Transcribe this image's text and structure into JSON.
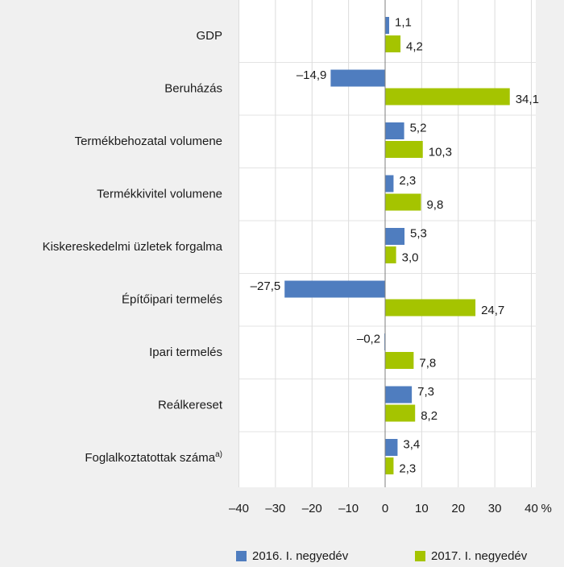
{
  "chart_data": {
    "type": "bar",
    "orientation": "horizontal",
    "categories": [
      "GDP",
      "Beruházás",
      "Termékbehozatal volumene",
      "Termékkivitel volumene",
      "Kiskereskedelmi üzletek forgalma",
      "Építőipari termelés",
      "Ipari termelés",
      "Reálkereset",
      "Foglalkoztatottak száma"
    ],
    "category_superscripts": [
      null,
      null,
      null,
      null,
      null,
      null,
      null,
      null,
      "a)"
    ],
    "series": [
      {
        "name": "2016. I. negyedév",
        "color": "#4f7dbf",
        "values": [
          1.1,
          -14.9,
          5.2,
          2.3,
          5.3,
          -27.5,
          -0.2,
          7.3,
          3.4
        ],
        "value_labels": [
          "1,1",
          "–14,9",
          "5,2",
          "2,3",
          "5,3",
          "–27,5",
          "–0,2",
          "7,3",
          "3,4"
        ]
      },
      {
        "name": "2017. I. negyedév",
        "color": "#a5c400",
        "values": [
          4.2,
          34.1,
          10.3,
          9.8,
          3.0,
          24.7,
          7.8,
          8.2,
          2.3
        ],
        "value_labels": [
          "4,2",
          "34,1",
          "10,3",
          "9,8",
          "3,0",
          "24,7",
          "7,8",
          "8,2",
          "2,3"
        ]
      }
    ],
    "xlim": [
      -40,
      40
    ],
    "xticks": [
      {
        "value": -40,
        "label": "–40"
      },
      {
        "value": -30,
        "label": "–30"
      },
      {
        "value": -20,
        "label": "–20"
      },
      {
        "value": -10,
        "label": "–10"
      },
      0,
      10,
      20,
      30,
      40
    ],
    "x_unit": "%",
    "grid": true,
    "legend": "bottom"
  }
}
